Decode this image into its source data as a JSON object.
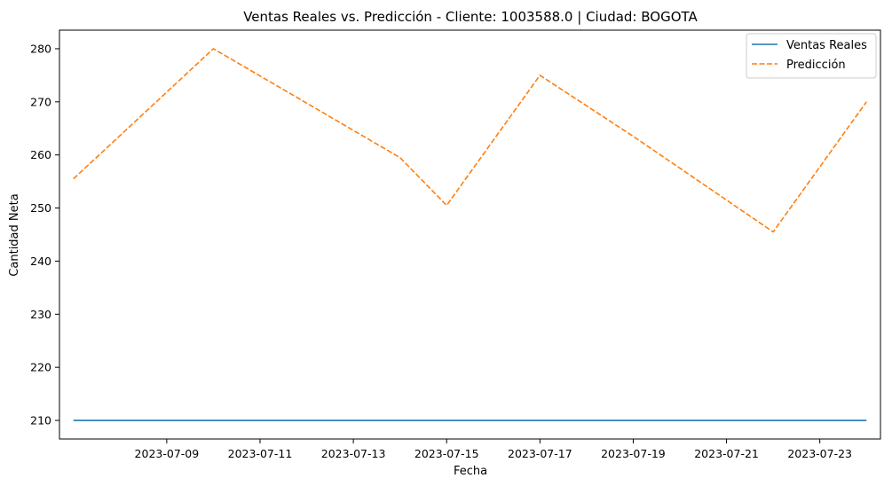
{
  "chart_data": {
    "type": "line",
    "title": "Ventas Reales vs. Predicción - Cliente: 1003588.0 | Ciudad: BOGOTA",
    "xlabel": "Fecha",
    "ylabel": "Cantidad Neta",
    "x_tick_labels": [
      "2023-07-09",
      "2023-07-11",
      "2023-07-13",
      "2023-07-15",
      "2023-07-17",
      "2023-07-19",
      "2023-07-21",
      "2023-07-23"
    ],
    "y_tick_labels": [
      "210",
      "220",
      "230",
      "240",
      "250",
      "260",
      "270",
      "280"
    ],
    "xlim": [
      "2023-07-06T16:48",
      "2023-07-24T07:12"
    ],
    "ylim": [
      206.5,
      283.5
    ],
    "legend_position": "upper-right",
    "series": [
      {
        "name": "Ventas Reales",
        "color": "#1f77b4",
        "style": "solid",
        "x": [
          "2023-07-07",
          "2023-07-24"
        ],
        "values": [
          210,
          210
        ]
      },
      {
        "name": "Predicción",
        "color": "#ff7f0e",
        "style": "dashed",
        "x": [
          "2023-07-07",
          "2023-07-10",
          "2023-07-14",
          "2023-07-15",
          "2023-07-17",
          "2023-07-19",
          "2023-07-22",
          "2023-07-24"
        ],
        "values": [
          255.5,
          280,
          259.5,
          250.5,
          275,
          263.5,
          245.5,
          270
        ]
      }
    ]
  }
}
